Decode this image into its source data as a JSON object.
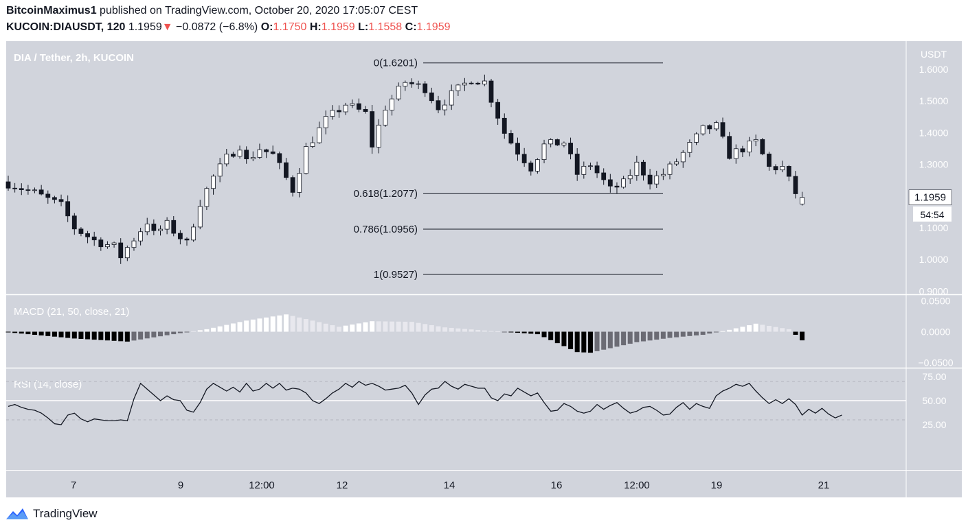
{
  "header": {
    "author": "BitcoinMaximus1",
    "published_on": "published on TradingView.com, October 20, 2020 17:05:07 CEST",
    "symbol": "KUCOIN:DIAUSDT, 120",
    "last_price": "1.1959",
    "change_arrow": "▼",
    "change": "−0.0872 (−6.8%)",
    "o_label": "O:",
    "o_value": "1.1750",
    "h_label": "H:",
    "h_value": "1.1959",
    "l_label": "L:",
    "l_value": "1.1558",
    "c_label": "C:",
    "c_value": "1.1959"
  },
  "colors": {
    "background": "#d1d4dc",
    "up": "#ffffff",
    "down": "#131722",
    "macd_pos_strong": "#ffffff",
    "macd_pos_weak": "#e8e8ee",
    "macd_neg_strong": "#000000",
    "macd_neg_weak": "#6b6b74",
    "price_accent": "#ef5350"
  },
  "footer": {
    "brand": "TradingView",
    "logo_icon": "tradingview-logo-icon"
  },
  "chart_data": [
    {
      "type": "candlestick",
      "title": "DIA / Tether, 2h, KUCOIN",
      "axis_unit": "USDT",
      "y_ticks": [
        "1.6000",
        "1.5000",
        "1.4000",
        "1.3000",
        "1.2000",
        "1.1000",
        "1.0000",
        "0.9000"
      ],
      "ylim": [
        0.9,
        1.6
      ],
      "last_price_label": "1.1959",
      "countdown_label": "54:54",
      "x_ticks": [
        "7",
        "9",
        "12:00",
        "12",
        "14",
        "16",
        "12:00",
        "19",
        "21"
      ],
      "fibonacci": [
        {
          "label": "0(1.6201)",
          "level": 1.6201
        },
        {
          "label": "0.618(1.2077)",
          "level": 1.2077
        },
        {
          "label": "0.786(1.0956)",
          "level": 1.0956
        },
        {
          "label": "1(0.9527)",
          "level": 0.9527
        }
      ],
      "close_path": [
        [
          0,
          1.24
        ],
        [
          4,
          1.21
        ],
        [
          8,
          1.17
        ],
        [
          10,
          1.1
        ],
        [
          13,
          1.06
        ],
        [
          16,
          1.04
        ],
        [
          17,
          1.01
        ],
        [
          21,
          1.12
        ],
        [
          22,
          1.08
        ],
        [
          24,
          1.11
        ],
        [
          27,
          1.05
        ],
        [
          29,
          1.18
        ],
        [
          31,
          1.26
        ],
        [
          33,
          1.32
        ],
        [
          35,
          1.36
        ],
        [
          36,
          1.31
        ],
        [
          38,
          1.35
        ],
        [
          40,
          1.33
        ],
        [
          43,
          1.22
        ],
        [
          45,
          1.35
        ],
        [
          48,
          1.44
        ],
        [
          51,
          1.49
        ],
        [
          54,
          1.46
        ],
        [
          55,
          1.36
        ],
        [
          57,
          1.48
        ],
        [
          60,
          1.56
        ],
        [
          63,
          1.54
        ],
        [
          65,
          1.48
        ],
        [
          67,
          1.52
        ],
        [
          70,
          1.57
        ],
        [
          72,
          1.56
        ],
        [
          75,
          1.4
        ],
        [
          77,
          1.34
        ],
        [
          79,
          1.29
        ],
        [
          81,
          1.36
        ],
        [
          84,
          1.37
        ],
        [
          86,
          1.27
        ],
        [
          88,
          1.3
        ],
        [
          91,
          1.22
        ],
        [
          93,
          1.24
        ],
        [
          95,
          1.3
        ],
        [
          97,
          1.25
        ],
        [
          99,
          1.27
        ],
        [
          101,
          1.31
        ],
        [
          103,
          1.36
        ],
        [
          105,
          1.41
        ],
        [
          107,
          1.42
        ],
        [
          109,
          1.33
        ],
        [
          111,
          1.35
        ],
        [
          113,
          1.37
        ],
        [
          115,
          1.29
        ],
        [
          117,
          1.29
        ],
        [
          119,
          1.21
        ],
        [
          120,
          1.1959
        ]
      ],
      "n_candles": 121
    },
    {
      "type": "bar",
      "title": "MACD (21, 50, close, 21)",
      "y_ticks": [
        "0.0500",
        "0.0000",
        "−0.0500"
      ],
      "ylim": [
        -0.05,
        0.05
      ],
      "path": [
        [
          0,
          -0.001
        ],
        [
          10,
          -0.011
        ],
        [
          18,
          -0.016
        ],
        [
          25,
          -0.004
        ],
        [
          30,
          0.004
        ],
        [
          36,
          0.018
        ],
        [
          42,
          0.028
        ],
        [
          46,
          0.018
        ],
        [
          50,
          0.008
        ],
        [
          55,
          0.017
        ],
        [
          61,
          0.016
        ],
        [
          66,
          0.007
        ],
        [
          72,
          0.002
        ],
        [
          80,
          -0.004
        ],
        [
          86,
          -0.033
        ],
        [
          88,
          -0.034
        ],
        [
          95,
          -0.017
        ],
        [
          100,
          -0.01
        ],
        [
          105,
          -0.005
        ],
        [
          109,
          0.003
        ],
        [
          113,
          0.013
        ],
        [
          118,
          0.004
        ],
        [
          120,
          -0.014
        ]
      ]
    },
    {
      "type": "line",
      "title": "RSI (14, close)",
      "y_ticks": [
        "75.00",
        "50.00",
        "25.00"
      ],
      "ylim": [
        0,
        100
      ],
      "values": [
        44,
        46,
        43,
        41,
        40,
        37,
        32,
        26,
        25,
        35,
        37,
        31,
        28,
        31,
        30,
        29,
        29,
        30,
        29,
        52,
        68,
        62,
        56,
        50,
        55,
        51,
        50,
        40,
        38,
        48,
        62,
        68,
        64,
        60,
        64,
        59,
        68,
        60,
        62,
        68,
        63,
        68,
        61,
        63,
        62,
        58,
        50,
        47,
        52,
        58,
        62,
        68,
        64,
        70,
        66,
        68,
        65,
        61,
        62,
        63,
        66,
        58,
        46,
        56,
        62,
        63,
        70,
        65,
        62,
        67,
        65,
        63,
        63,
        53,
        50,
        57,
        55,
        63,
        59,
        55,
        58,
        48,
        39,
        40,
        47,
        44,
        39,
        37,
        39,
        46,
        41,
        45,
        48,
        42,
        37,
        39,
        43,
        44,
        40,
        35,
        36,
        43,
        48,
        41,
        47,
        44,
        42,
        55,
        60,
        63,
        67,
        65,
        68,
        60,
        53,
        47,
        51,
        47,
        52,
        46,
        35,
        41,
        37,
        42,
        36,
        32,
        35
      ]
    }
  ]
}
